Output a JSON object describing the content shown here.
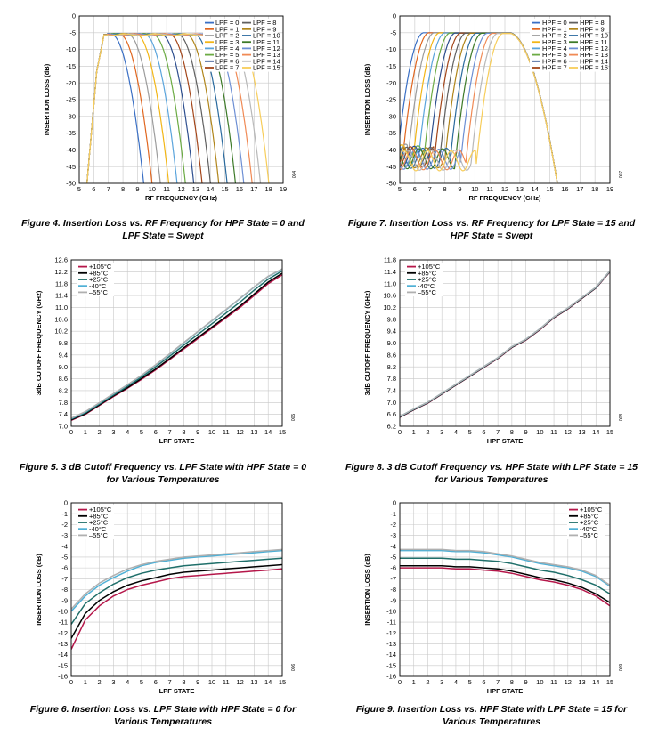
{
  "chart_data": [
    {
      "id": "fig4",
      "type": "line",
      "xlabel": "RF FREQUENCY (GHz)",
      "ylabel": "INSERTION LOSS (dB)",
      "xlim": [
        5,
        19
      ],
      "ylim": [
        -50,
        0
      ],
      "xstep": 1,
      "ystep": 5,
      "grid": true,
      "legend_position": "top-right",
      "legend_columns": 2,
      "caption": "Figure 4. Insertion Loss vs. RF Frequency for HPF State = 0 and LPF State = Swept",
      "figure_number": "004",
      "curve_model": {
        "kind": "lpf_sweep",
        "hp_edge": 6.2,
        "lp_start": 7.8,
        "lp_end": 16.4,
        "states": 16,
        "passband": -5.5
      },
      "series": [
        {
          "name": "LPF = 0",
          "color": "#3a6fc4"
        },
        {
          "name": "LPF = 1",
          "color": "#e0661f"
        },
        {
          "name": "LPF = 2",
          "color": "#9c9c9c"
        },
        {
          "name": "LPF = 3",
          "color": "#f2b617"
        },
        {
          "name": "LPF = 4",
          "color": "#5aa4dc"
        },
        {
          "name": "LPF = 5",
          "color": "#6cab44"
        },
        {
          "name": "LPF = 6",
          "color": "#2e4f8f"
        },
        {
          "name": "LPF = 7",
          "color": "#a3461a"
        },
        {
          "name": "LPF = 8",
          "color": "#606060"
        },
        {
          "name": "LPF = 9",
          "color": "#b0851a"
        },
        {
          "name": "LPF = 10",
          "color": "#2a6a9e"
        },
        {
          "name": "LPF = 11",
          "color": "#3d7a28"
        },
        {
          "name": "LPF = 12",
          "color": "#6d8fd4"
        },
        {
          "name": "LPF = 13",
          "color": "#f08a55"
        },
        {
          "name": "LPF = 14",
          "color": "#b8b8b8"
        },
        {
          "name": "LPF = 15",
          "color": "#f7cd5a"
        }
      ]
    },
    {
      "id": "fig7",
      "type": "line",
      "xlabel": "RF FREQUENCY (GHz)",
      "ylabel": "INSERTION LOSS (dB)",
      "xlim": [
        5,
        19
      ],
      "ylim": [
        -50,
        0
      ],
      "xstep": 1,
      "ystep": 5,
      "grid": true,
      "legend_position": "top-right",
      "legend_columns": 2,
      "caption": "Figure 7. Insertion Loss vs. RF Frequency for LPF State = 15 and HPF State = Swept",
      "figure_number": "007",
      "curve_model": {
        "kind": "hpf_sweep",
        "lp_edge": 12.6,
        "hp_start": 6.1,
        "hp_end": 11.4,
        "states": 16,
        "passband": -5.0
      },
      "series": [
        {
          "name": "HPF = 0",
          "color": "#3a6fc4"
        },
        {
          "name": "HPF = 1",
          "color": "#e0661f"
        },
        {
          "name": "HPF = 2",
          "color": "#9c9c9c"
        },
        {
          "name": "HPF = 3",
          "color": "#f2b617"
        },
        {
          "name": "HPF = 4",
          "color": "#5aa4dc"
        },
        {
          "name": "HPF = 5",
          "color": "#6cab44"
        },
        {
          "name": "HPF = 6",
          "color": "#2e4f8f"
        },
        {
          "name": "HPF = 7",
          "color": "#a3461a"
        },
        {
          "name": "HPF = 8",
          "color": "#606060"
        },
        {
          "name": "HPF = 9",
          "color": "#b0851a"
        },
        {
          "name": "HPF = 10",
          "color": "#2a6a9e"
        },
        {
          "name": "HPF = 11",
          "color": "#3d7a28"
        },
        {
          "name": "HPF = 12",
          "color": "#6d8fd4"
        },
        {
          "name": "HPF = 13",
          "color": "#f08a55"
        },
        {
          "name": "HPF = 14",
          "color": "#b8b8b8"
        },
        {
          "name": "HPF = 15",
          "color": "#f7cd5a"
        }
      ]
    },
    {
      "id": "fig5",
      "type": "line",
      "xlabel": "LPF STATE",
      "ylabel": "3dB CUTOFF FREQUENCY (GHz)",
      "xlim": [
        0,
        15
      ],
      "ylim": [
        7.0,
        12.6
      ],
      "xstep": 1,
      "ystep": 0.4,
      "ydecimals": 1,
      "grid": true,
      "legend_position": "top-left",
      "legend_columns": 1,
      "caption": "Figure 5. 3 dB Cutoff Frequency vs. LPF State with HPF State = 0 for Various Temperatures",
      "figure_number": "005",
      "x": [
        0,
        1,
        2,
        3,
        4,
        5,
        6,
        7,
        8,
        9,
        10,
        11,
        12,
        13,
        14,
        15
      ],
      "series": [
        {
          "name": "+105°C",
          "color": "#b5174a",
          "values": [
            7.2,
            7.4,
            7.7,
            8.0,
            8.28,
            8.58,
            8.9,
            9.25,
            9.6,
            9.95,
            10.3,
            10.65,
            11.0,
            11.4,
            11.8,
            12.1
          ]
        },
        {
          "name": "+85°C",
          "color": "#000000",
          "values": [
            7.22,
            7.42,
            7.72,
            8.02,
            8.3,
            8.61,
            8.93,
            9.28,
            9.64,
            9.99,
            10.34,
            10.69,
            11.05,
            11.45,
            11.85,
            12.15
          ]
        },
        {
          "name": "+25°C",
          "color": "#1f6f6a",
          "values": [
            7.24,
            7.45,
            7.75,
            8.05,
            8.35,
            8.66,
            9.0,
            9.36,
            9.73,
            10.09,
            10.45,
            10.81,
            11.18,
            11.58,
            11.95,
            12.23
          ]
        },
        {
          "name": "-40°C",
          "color": "#4fb0d6",
          "values": [
            7.26,
            7.48,
            7.78,
            8.09,
            8.39,
            8.71,
            9.06,
            9.43,
            9.81,
            10.18,
            10.55,
            10.92,
            11.3,
            11.68,
            12.04,
            12.29
          ]
        },
        {
          "name": "–55°C",
          "color": "#b0b0b0",
          "values": [
            7.27,
            7.49,
            7.79,
            8.1,
            8.4,
            8.72,
            9.07,
            9.44,
            9.82,
            10.19,
            10.56,
            10.93,
            11.31,
            11.69,
            12.05,
            12.3
          ]
        }
      ]
    },
    {
      "id": "fig8",
      "type": "line",
      "xlabel": "HPF STATE",
      "ylabel": "3dB CUTOFF FREQUENCY (GHz)",
      "xlim": [
        0,
        15
      ],
      "ylim": [
        6.2,
        11.8
      ],
      "xstep": 1,
      "ystep": 0.4,
      "ydecimals": 1,
      "grid": true,
      "legend_position": "top-left",
      "legend_columns": 1,
      "caption": "Figure 8. 3 dB Cutoff Frequency vs. HPF State with LPF State = 15 for Various Temperatures",
      "figure_number": "008",
      "x": [
        0,
        1,
        2,
        3,
        4,
        5,
        6,
        7,
        8,
        9,
        10,
        11,
        12,
        13,
        14,
        15
      ],
      "series": [
        {
          "name": "+105°C",
          "color": "#b5174a",
          "values": [
            6.5,
            6.75,
            6.98,
            7.28,
            7.58,
            7.88,
            8.18,
            8.48,
            8.85,
            9.1,
            9.45,
            9.85,
            10.15,
            10.5,
            10.85,
            11.4
          ]
        },
        {
          "name": "+85°C",
          "color": "#000000",
          "values": [
            6.51,
            6.76,
            6.99,
            7.29,
            7.59,
            7.89,
            8.19,
            8.49,
            8.86,
            9.11,
            9.46,
            9.86,
            10.16,
            10.51,
            10.86,
            11.41
          ]
        },
        {
          "name": "+25°C",
          "color": "#1f6f6a",
          "values": [
            6.52,
            6.77,
            7.0,
            7.3,
            7.6,
            7.9,
            8.2,
            8.5,
            8.87,
            9.12,
            9.47,
            9.87,
            10.17,
            10.52,
            10.87,
            11.42
          ]
        },
        {
          "name": "-40°C",
          "color": "#4fb0d6",
          "values": [
            6.53,
            6.78,
            7.01,
            7.31,
            7.61,
            7.91,
            8.21,
            8.51,
            8.88,
            9.13,
            9.48,
            9.88,
            10.18,
            10.53,
            10.88,
            11.43
          ]
        },
        {
          "name": "–55°C",
          "color": "#b0b0b0",
          "values": [
            6.53,
            6.78,
            7.01,
            7.31,
            7.61,
            7.91,
            8.21,
            8.51,
            8.88,
            9.13,
            9.48,
            9.88,
            10.18,
            10.53,
            10.88,
            11.43
          ]
        }
      ]
    },
    {
      "id": "fig6",
      "type": "line",
      "xlabel": "LPF STATE",
      "ylabel": "INSERTION LOSS (dB)",
      "xlim": [
        0,
        15
      ],
      "ylim": [
        -16,
        0
      ],
      "xstep": 1,
      "ystep": 1,
      "grid": true,
      "legend_position": "top-left",
      "legend_columns": 1,
      "caption": "Figure 6. Insertion Loss vs. LPF State with HPF State = 0 for Various Temperatures",
      "figure_number": "006",
      "x": [
        0,
        1,
        2,
        3,
        4,
        5,
        6,
        7,
        8,
        9,
        10,
        11,
        12,
        13,
        14,
        15
      ],
      "series": [
        {
          "name": "+105°C",
          "color": "#b5174a",
          "values": [
            -13.5,
            -10.8,
            -9.5,
            -8.6,
            -8.0,
            -7.6,
            -7.3,
            -7.0,
            -6.8,
            -6.7,
            -6.6,
            -6.5,
            -6.4,
            -6.3,
            -6.2,
            -6.1
          ]
        },
        {
          "name": "+85°C",
          "color": "#000000",
          "values": [
            -12.5,
            -10.2,
            -9.0,
            -8.2,
            -7.6,
            -7.2,
            -6.9,
            -6.6,
            -6.4,
            -6.3,
            -6.2,
            -6.1,
            -6.0,
            -5.9,
            -5.8,
            -5.7
          ]
        },
        {
          "name": "+25°C",
          "color": "#1f6f6a",
          "values": [
            -11.2,
            -9.3,
            -8.3,
            -7.5,
            -6.9,
            -6.5,
            -6.2,
            -6.0,
            -5.8,
            -5.7,
            -5.6,
            -5.5,
            -5.4,
            -5.3,
            -5.2,
            -5.1
          ]
        },
        {
          "name": "-40°C",
          "color": "#4fb0d6",
          "values": [
            -10.0,
            -8.6,
            -7.6,
            -6.9,
            -6.3,
            -5.8,
            -5.5,
            -5.3,
            -5.1,
            -5.0,
            -4.9,
            -4.8,
            -4.7,
            -4.6,
            -4.5,
            -4.4
          ]
        },
        {
          "name": "–55°C",
          "color": "#b0b0b0",
          "values": [
            -9.8,
            -8.4,
            -7.4,
            -6.7,
            -6.1,
            -5.7,
            -5.4,
            -5.2,
            -5.0,
            -4.9,
            -4.8,
            -4.7,
            -4.6,
            -4.5,
            -4.4,
            -4.3
          ]
        }
      ]
    },
    {
      "id": "fig9",
      "type": "line",
      "xlabel": "HPF STATE",
      "ylabel": "INSERTION LOSS (dB)",
      "xlim": [
        0,
        15
      ],
      "ylim": [
        -16,
        0
      ],
      "xstep": 1,
      "ystep": 1,
      "grid": true,
      "legend_position": "top-right",
      "legend_columns": 1,
      "caption": "Figure 9. Insertion Loss vs. HPF State with LPF State = 15 for Various Temperatures",
      "figure_number": "009",
      "x": [
        0,
        1,
        2,
        3,
        4,
        5,
        6,
        7,
        8,
        9,
        10,
        11,
        12,
        13,
        14,
        15
      ],
      "series": [
        {
          "name": "+105°C",
          "color": "#b5174a",
          "values": [
            -6.0,
            -6.0,
            -6.0,
            -6.0,
            -6.1,
            -6.1,
            -6.2,
            -6.3,
            -6.5,
            -6.8,
            -7.1,
            -7.3,
            -7.6,
            -8.0,
            -8.6,
            -9.5
          ]
        },
        {
          "name": "+85°C",
          "color": "#000000",
          "values": [
            -5.8,
            -5.8,
            -5.8,
            -5.8,
            -5.9,
            -5.9,
            -6.0,
            -6.1,
            -6.3,
            -6.6,
            -6.9,
            -7.1,
            -7.4,
            -7.8,
            -8.4,
            -9.2
          ]
        },
        {
          "name": "+25°C",
          "color": "#1f6f6a",
          "values": [
            -5.1,
            -5.1,
            -5.1,
            -5.1,
            -5.2,
            -5.2,
            -5.3,
            -5.4,
            -5.6,
            -5.9,
            -6.2,
            -6.4,
            -6.7,
            -7.1,
            -7.6,
            -8.4
          ]
        },
        {
          "name": "-40°C",
          "color": "#4fb0d6",
          "values": [
            -4.4,
            -4.4,
            -4.4,
            -4.4,
            -4.5,
            -4.5,
            -4.6,
            -4.8,
            -5.0,
            -5.3,
            -5.6,
            -5.8,
            -6.0,
            -6.3,
            -6.8,
            -7.7
          ]
        },
        {
          "name": "–55°C",
          "color": "#b0b0b0",
          "values": [
            -4.3,
            -4.3,
            -4.3,
            -4.3,
            -4.4,
            -4.4,
            -4.5,
            -4.7,
            -4.9,
            -5.2,
            -5.5,
            -5.7,
            -5.9,
            -6.2,
            -6.7,
            -7.6
          ]
        }
      ]
    }
  ]
}
